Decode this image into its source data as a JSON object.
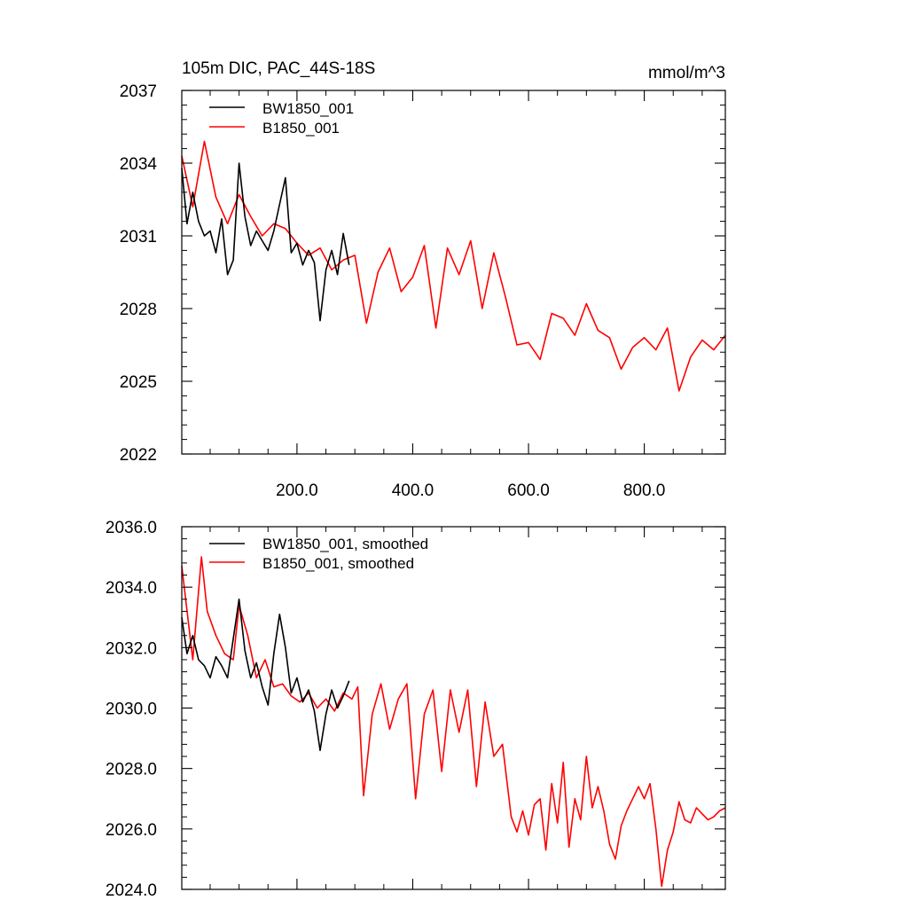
{
  "colors": {
    "BW1850_001": "#000000",
    "B1850_001": "#ff0000",
    "axis": "#000000"
  },
  "chart_data": [
    {
      "type": "line",
      "title": "105m DIC, PAC_44S-18S",
      "units": "mmol/m^3",
      "xlim": [
        1,
        940
      ],
      "ylim": [
        2022,
        2037
      ],
      "xticks": [
        200,
        400,
        600,
        800
      ],
      "xtick_labels": [
        "200.0",
        "400.0",
        "600.0",
        "800.0"
      ],
      "yticks": [
        2022,
        2025,
        2028,
        2031,
        2034,
        2037
      ],
      "ytick_labels": [
        "2022",
        "2025",
        "2028",
        "2031",
        "2034",
        "2037"
      ],
      "legend": {
        "placement": "top-left",
        "entries": [
          "BW1850_001",
          "B1850_001"
        ]
      },
      "series": [
        {
          "name": "BW1850_001",
          "color": "#000000",
          "x": [
            1,
            10,
            20,
            30,
            40,
            50,
            60,
            70,
            80,
            90,
            100,
            110,
            120,
            130,
            140,
            150,
            160,
            170,
            180,
            190,
            200,
            210,
            220,
            230,
            240,
            250,
            260,
            270,
            280,
            290
          ],
          "values": [
            2033.8,
            2031.5,
            2032.8,
            2031.6,
            2031.0,
            2031.2,
            2030.3,
            2031.7,
            2029.4,
            2030.0,
            2034.0,
            2031.8,
            2030.6,
            2031.2,
            2030.8,
            2030.4,
            2031.2,
            2032.3,
            2033.4,
            2030.3,
            2030.7,
            2029.8,
            2030.4,
            2029.9,
            2027.5,
            2029.6,
            2030.4,
            2029.4,
            2031.1,
            2029.8
          ]
        },
        {
          "name": "B1850_001",
          "color": "#ff0000",
          "x": [
            1,
            20,
            40,
            60,
            80,
            100,
            120,
            140,
            160,
            180,
            200,
            220,
            240,
            260,
            280,
            300,
            320,
            340,
            360,
            380,
            400,
            420,
            440,
            460,
            480,
            500,
            520,
            540,
            560,
            580,
            600,
            620,
            640,
            660,
            680,
            700,
            720,
            740,
            760,
            780,
            800,
            820,
            840,
            860,
            880,
            900,
            920,
            940
          ],
          "values": [
            2034.3,
            2032.2,
            2034.9,
            2032.6,
            2031.5,
            2032.7,
            2031.8,
            2031.0,
            2031.5,
            2031.3,
            2030.7,
            2030.2,
            2030.5,
            2029.6,
            2030.0,
            2030.2,
            2027.4,
            2029.5,
            2030.5,
            2028.7,
            2029.3,
            2030.6,
            2027.2,
            2030.5,
            2029.4,
            2030.8,
            2028.0,
            2030.3,
            2028.5,
            2026.5,
            2026.6,
            2025.9,
            2027.8,
            2027.6,
            2026.9,
            2028.2,
            2027.1,
            2026.8,
            2025.5,
            2026.4,
            2026.8,
            2026.3,
            2027.2,
            2024.6,
            2026.0,
            2026.7,
            2026.3,
            2026.9
          ]
        }
      ]
    },
    {
      "type": "line",
      "xlim": [
        1,
        940
      ],
      "ylim": [
        2024.0,
        2036.0
      ],
      "yticks": [
        2024,
        2026,
        2028,
        2030,
        2032,
        2034,
        2036
      ],
      "ytick_labels": [
        "2024.0",
        "2026.0",
        "2028.0",
        "2030.0",
        "2032.0",
        "2034.0",
        "2036.0"
      ],
      "legend": {
        "placement": "top-left",
        "entries": [
          "BW1850_001, smoothed",
          "B1850_001, smoothed"
        ]
      },
      "series": [
        {
          "name": "BW1850_001, smoothed",
          "color": "#000000",
          "x": [
            1,
            10,
            20,
            30,
            40,
            50,
            60,
            70,
            80,
            90,
            100,
            110,
            120,
            130,
            140,
            150,
            160,
            170,
            180,
            190,
            200,
            210,
            220,
            230,
            240,
            250,
            260,
            270,
            280,
            290
          ],
          "values": [
            2033.0,
            2031.8,
            2032.4,
            2031.6,
            2031.4,
            2031.0,
            2031.7,
            2031.4,
            2031.0,
            2032.3,
            2033.6,
            2031.9,
            2031.0,
            2031.5,
            2030.7,
            2030.1,
            2031.8,
            2033.1,
            2032.0,
            2030.5,
            2031.0,
            2030.2,
            2030.6,
            2029.9,
            2028.6,
            2029.8,
            2030.6,
            2030.0,
            2030.4,
            2030.9
          ]
        },
        {
          "name": "B1850_001, smoothed",
          "color": "#ff0000",
          "x": [
            1,
            20,
            35,
            45,
            60,
            75,
            90,
            100,
            115,
            130,
            145,
            160,
            175,
            190,
            205,
            220,
            235,
            250,
            265,
            280,
            295,
            305,
            315,
            330,
            345,
            360,
            375,
            390,
            405,
            420,
            435,
            450,
            465,
            480,
            495,
            510,
            525,
            540,
            555,
            570,
            580,
            590,
            600,
            610,
            620,
            630,
            640,
            650,
            660,
            670,
            680,
            690,
            700,
            710,
            720,
            730,
            740,
            750,
            760,
            770,
            780,
            790,
            800,
            810,
            820,
            830,
            840,
            850,
            860,
            870,
            880,
            890,
            900,
            910,
            920,
            930,
            940
          ],
          "values": [
            2034.7,
            2031.6,
            2035.0,
            2033.2,
            2032.4,
            2031.8,
            2031.6,
            2033.4,
            2032.4,
            2031.0,
            2031.6,
            2030.7,
            2030.8,
            2030.4,
            2030.2,
            2030.5,
            2030.0,
            2030.3,
            2029.9,
            2030.5,
            2030.3,
            2030.7,
            2027.1,
            2029.8,
            2030.8,
            2029.3,
            2030.3,
            2030.8,
            2027.0,
            2029.8,
            2030.6,
            2027.9,
            2030.6,
            2029.2,
            2030.6,
            2027.4,
            2030.2,
            2028.4,
            2028.8,
            2026.4,
            2025.9,
            2026.6,
            2025.8,
            2026.8,
            2027.0,
            2025.3,
            2027.5,
            2026.2,
            2028.2,
            2025.4,
            2027.0,
            2026.3,
            2028.4,
            2026.7,
            2027.4,
            2026.6,
            2025.5,
            2025.0,
            2026.1,
            2026.6,
            2027.0,
            2027.4,
            2027.0,
            2027.5,
            2026.0,
            2024.1,
            2025.3,
            2025.9,
            2026.9,
            2026.3,
            2026.2,
            2026.7,
            2026.5,
            2026.3,
            2026.4,
            2026.6,
            2026.7
          ]
        }
      ]
    }
  ]
}
